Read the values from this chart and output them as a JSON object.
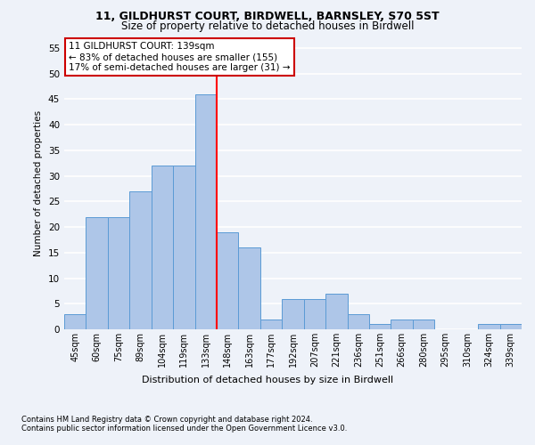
{
  "title1": "11, GILDHURST COURT, BIRDWELL, BARNSLEY, S70 5ST",
  "title2": "Size of property relative to detached houses in Birdwell",
  "xlabel": "Distribution of detached houses by size in Birdwell",
  "ylabel": "Number of detached properties",
  "footer1": "Contains HM Land Registry data © Crown copyright and database right 2024.",
  "footer2": "Contains public sector information licensed under the Open Government Licence v3.0.",
  "annotation_line1": "11 GILDHURST COURT: 139sqm",
  "annotation_line2": "← 83% of detached houses are smaller (155)",
  "annotation_line3": "17% of semi-detached houses are larger (31) →",
  "bar_labels": [
    "45sqm",
    "60sqm",
    "75sqm",
    "89sqm",
    "104sqm",
    "119sqm",
    "133sqm",
    "148sqm",
    "163sqm",
    "177sqm",
    "192sqm",
    "207sqm",
    "221sqm",
    "236sqm",
    "251sqm",
    "266sqm",
    "280sqm",
    "295sqm",
    "310sqm",
    "324sqm",
    "339sqm"
  ],
  "bar_values": [
    3,
    22,
    22,
    27,
    32,
    32,
    46,
    19,
    16,
    2,
    6,
    6,
    7,
    3,
    1,
    2,
    2,
    0,
    0,
    1,
    1
  ],
  "bar_color": "#aec6e8",
  "bar_edge_color": "#5b9bd5",
  "red_line_index": 6.5,
  "ylim": [
    0,
    57
  ],
  "yticks": [
    0,
    5,
    10,
    15,
    20,
    25,
    30,
    35,
    40,
    45,
    50,
    55
  ],
  "background_color": "#eef2f9",
  "grid_color": "#ffffff",
  "annotation_box_color": "#ffffff",
  "annotation_box_edge": "#cc0000"
}
